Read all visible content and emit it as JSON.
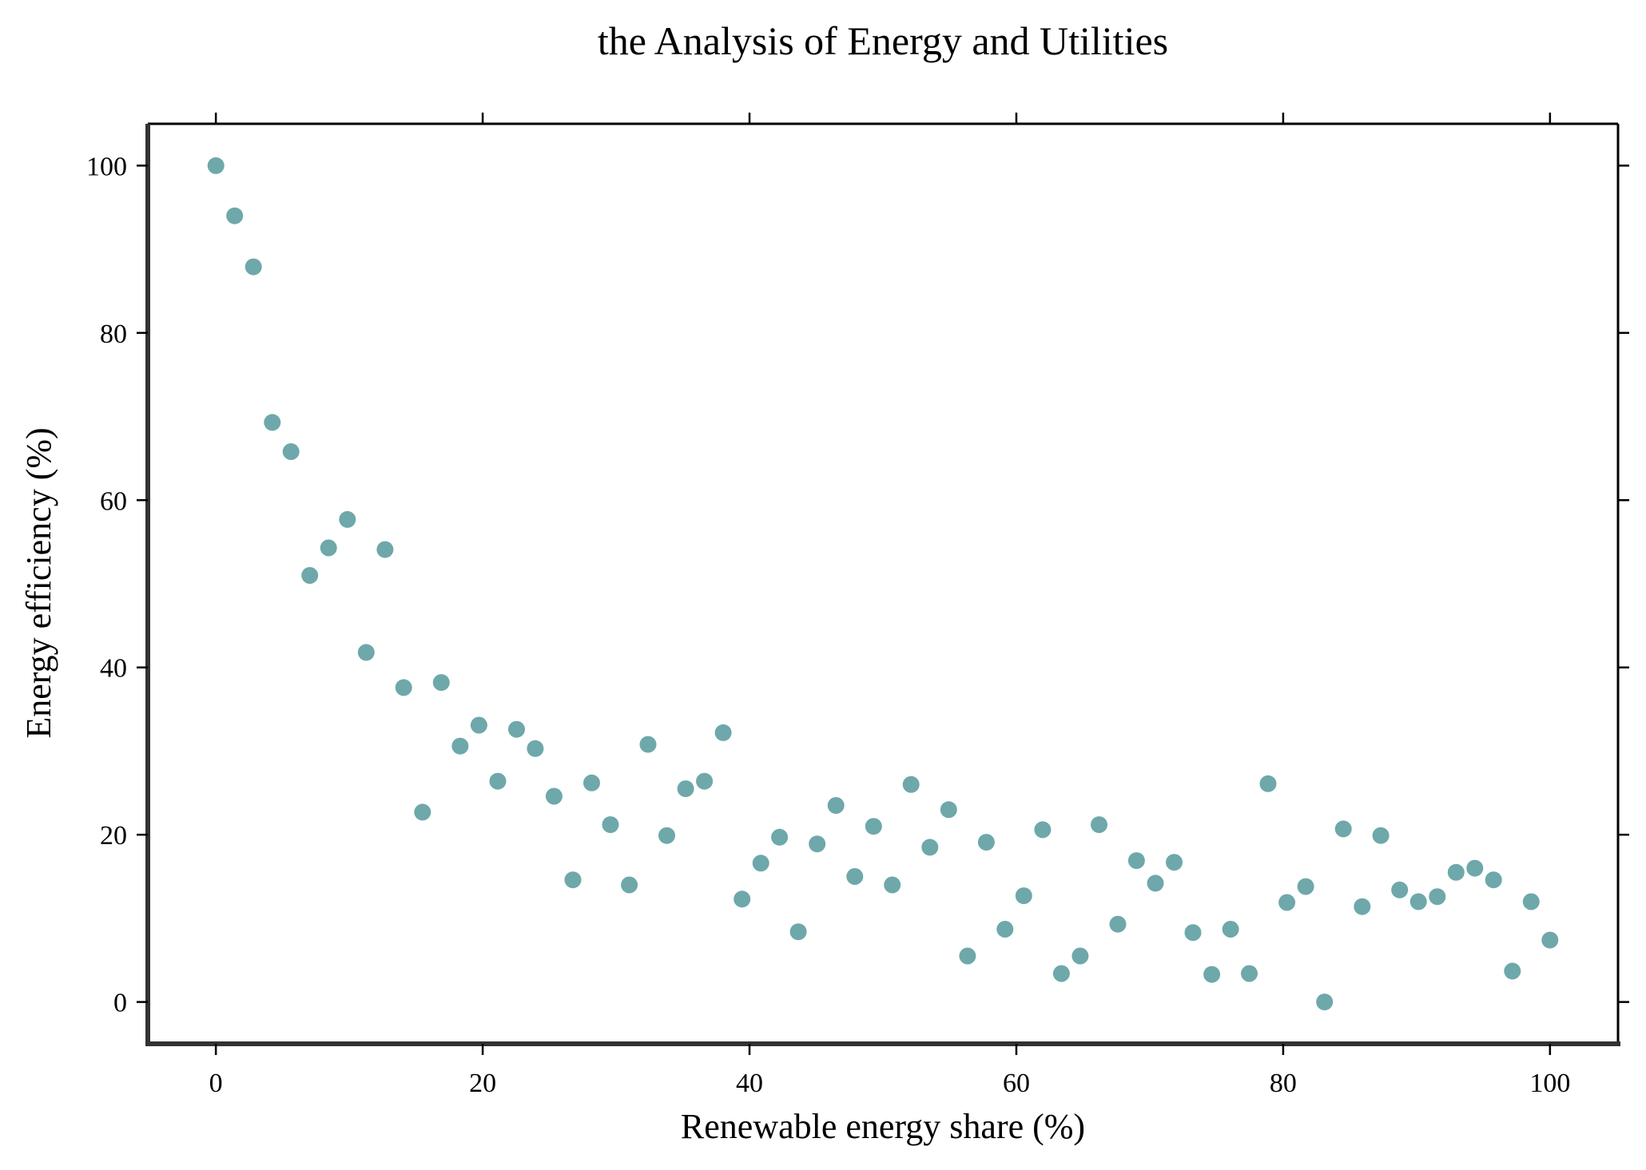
{
  "chart_data": {
    "type": "scatter",
    "title": "the Analysis of Energy and Utilities",
    "xlabel": "Renewable energy share (%)",
    "ylabel": "Energy efficiency (%)",
    "xlim": [
      -5.1,
      105.1
    ],
    "ylim": [
      -5,
      105
    ],
    "xticks": [
      0,
      20,
      40,
      60,
      80,
      100
    ],
    "yticks": [
      0,
      20,
      40,
      60,
      80,
      100
    ],
    "grid": false,
    "legend": "none",
    "marker_color": "#6ea8aa",
    "series": [
      {
        "x": [
          0.0,
          1.41,
          2.82,
          4.23,
          5.63,
          7.04,
          8.45,
          9.86,
          11.27,
          12.68,
          14.08,
          15.49,
          16.9,
          18.31,
          19.72,
          21.13,
          22.54,
          23.94,
          25.35,
          26.76,
          28.17,
          29.58,
          30.99,
          32.39,
          33.8,
          35.21,
          36.62,
          38.03,
          39.44,
          40.85,
          42.25,
          43.66,
          45.07,
          46.48,
          47.89,
          49.3,
          50.7,
          52.11,
          53.52,
          54.93,
          56.34,
          57.75,
          59.15,
          60.56,
          61.97,
          63.38,
          64.79,
          66.2,
          67.61,
          69.01,
          70.42,
          71.83,
          73.24,
          74.65,
          76.06,
          77.46,
          78.87,
          80.28,
          81.69,
          83.1,
          84.51,
          85.92,
          87.32,
          88.73,
          90.14,
          91.55,
          92.96,
          94.37,
          95.77,
          97.18,
          98.59,
          100.0
        ],
        "y": [
          100.0,
          94.0,
          87.9,
          69.3,
          65.8,
          51.0,
          54.3,
          57.7,
          41.8,
          54.1,
          37.6,
          22.7,
          38.2,
          30.6,
          33.1,
          26.4,
          32.6,
          30.3,
          24.6,
          14.6,
          26.2,
          21.2,
          14.0,
          30.8,
          19.9,
          25.5,
          26.4,
          32.2,
          12.3,
          16.6,
          19.7,
          8.4,
          18.9,
          23.5,
          15.0,
          21.0,
          14.0,
          26.0,
          18.5,
          23.0,
          5.5,
          19.1,
          8.7,
          12.7,
          20.6,
          3.4,
          5.5,
          21.2,
          9.3,
          16.9,
          14.2,
          16.7,
          8.3,
          3.3,
          8.7,
          3.4,
          26.1,
          11.9,
          13.8,
          0.0,
          20.7,
          11.4,
          19.9,
          13.4,
          12.0,
          12.6,
          15.5,
          16.0,
          14.6,
          3.7,
          12.0,
          7.4
        ]
      }
    ]
  }
}
